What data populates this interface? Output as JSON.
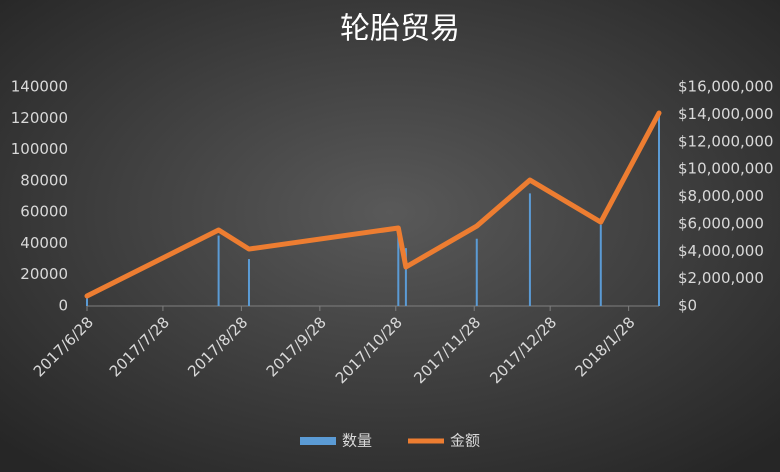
{
  "chart_data": {
    "type": "combo",
    "title": "轮胎贸易",
    "x": [
      "2017/6/28",
      "2017/8/19",
      "2017/8/31",
      "2017/10/29",
      "2017/11/1",
      "2017/11/29",
      "2017/12/20",
      "2018/1/17",
      "2018/2/9"
    ],
    "xlim": [
      "2017/6/28",
      "2018/2/9"
    ],
    "xticks": [
      "2017/6/28",
      "2017/7/28",
      "2017/8/28",
      "2017/9/28",
      "2017/10/28",
      "2017/11/28",
      "2017/12/28",
      "2018/1/28"
    ],
    "series": [
      {
        "name": "数量",
        "type": "bar",
        "color": "#5b9bd5",
        "values": [
          5000,
          45000,
          30000,
          49000,
          37000,
          43000,
          72000,
          52000,
          123000
        ]
      },
      {
        "name": "金额",
        "type": "line",
        "axis": "y2",
        "color": "#ed7d31",
        "values": [
          730000,
          5550000,
          4160000,
          5700000,
          2850000,
          5840000,
          9200000,
          6130000,
          14100000
        ]
      }
    ],
    "ylim": [
      0,
      140000
    ],
    "yticks": [
      0,
      20000,
      40000,
      60000,
      80000,
      100000,
      120000,
      140000
    ],
    "y2lim": [
      0,
      16000000
    ],
    "y2ticks": [
      {
        "value": 0,
        "label": "$0"
      },
      {
        "value": 2000000,
        "label": "$2,000,000"
      },
      {
        "value": 4000000,
        "label": "$4,000,000"
      },
      {
        "value": 6000000,
        "label": "$6,000,000"
      },
      {
        "value": 8000000,
        "label": "$8,000,000"
      },
      {
        "value": 10000000,
        "label": "$10,000,000"
      },
      {
        "value": 12000000,
        "label": "$12,000,000"
      },
      {
        "value": 14000000,
        "label": "$14,000,000"
      },
      {
        "value": 16000000,
        "label": "$16,000,000"
      }
    ],
    "grid": false,
    "legend": "bottom"
  }
}
